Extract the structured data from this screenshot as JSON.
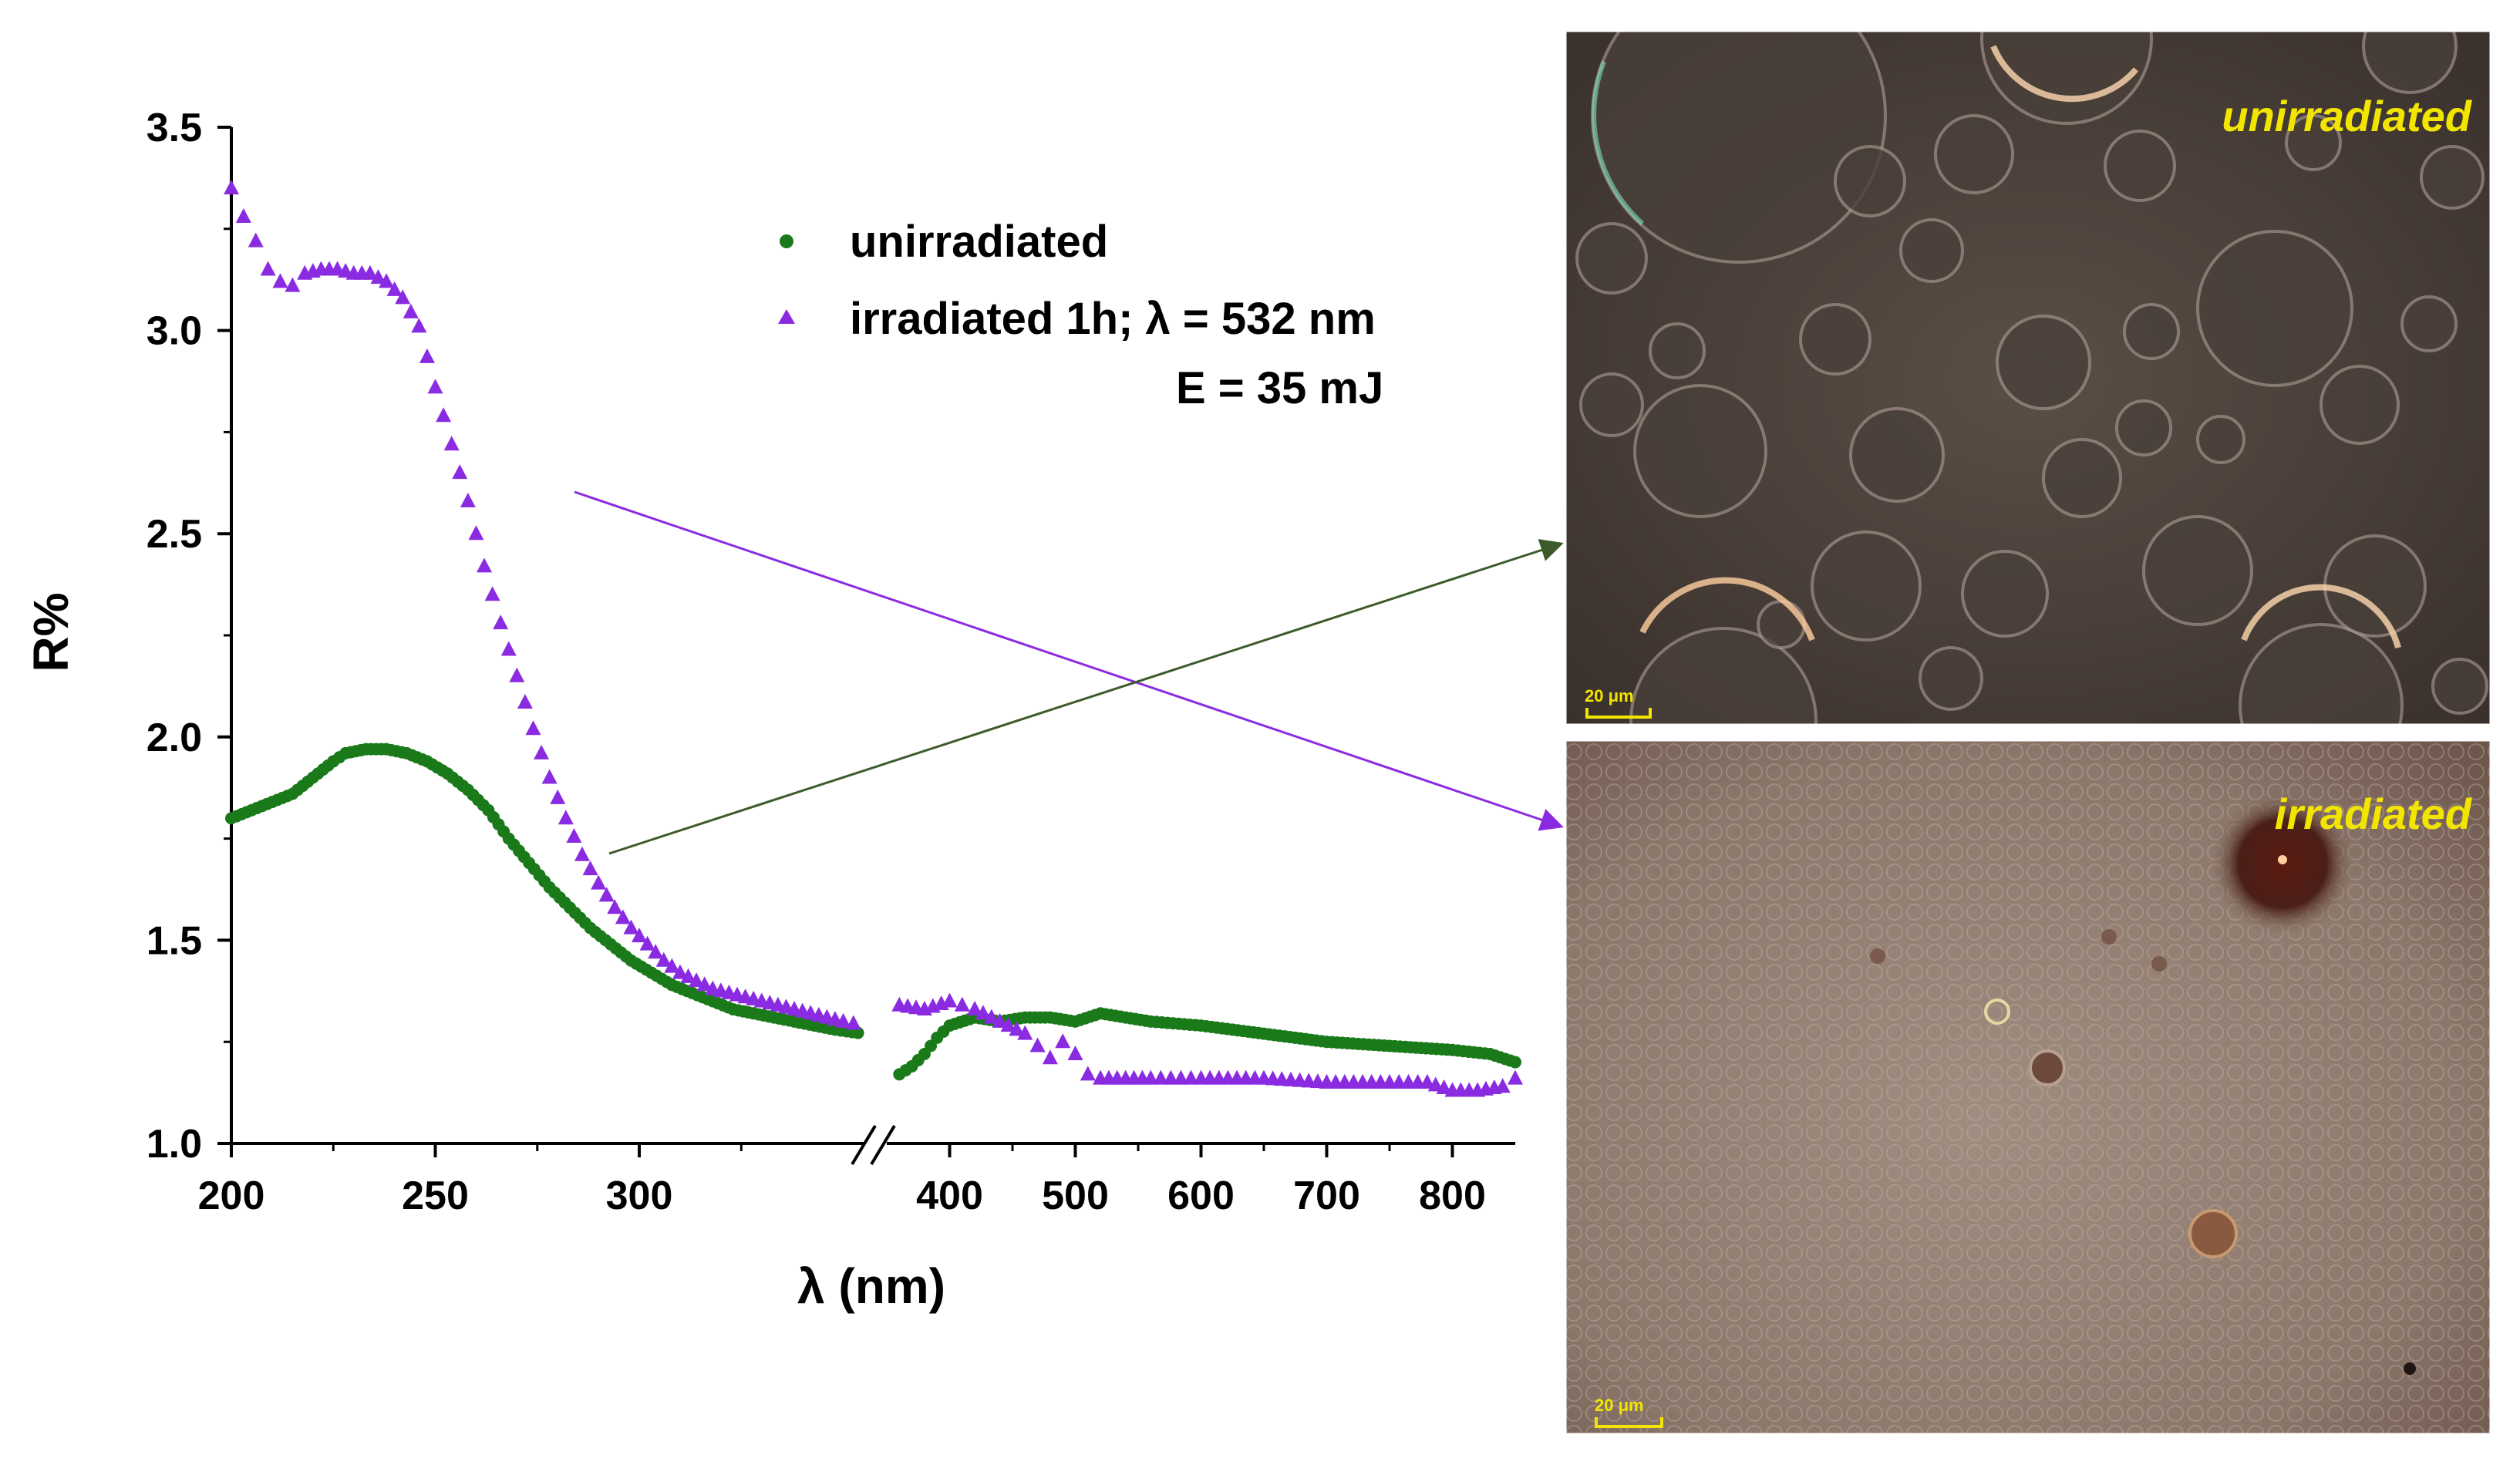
{
  "chart_data": {
    "type": "scatter",
    "xlabel": "λ (nm)",
    "ylabel": "R%",
    "ylim": [
      1.0,
      3.5
    ],
    "y_ticks": [
      "1.0",
      "1.5",
      "2.0",
      "2.5",
      "3.0",
      "3.5"
    ],
    "x_axis_broken": true,
    "x_segment_left": {
      "range": [
        200,
        355
      ],
      "ticks": [
        "200",
        "250",
        "300"
      ]
    },
    "x_segment_right": {
      "range": [
        350,
        850
      ],
      "ticks": [
        "400",
        "500",
        "600",
        "700",
        "800"
      ]
    },
    "legend": {
      "placement": "top-center",
      "entries": [
        "unirradiated",
        "irradiated 1h; λ = 532 nm"
      ],
      "note": "E = 35 mJ"
    },
    "series": [
      {
        "name": "unirradiated",
        "color": "#1a7a1a",
        "marker": "circle",
        "x": [
          200,
          205,
          210,
          215,
          220,
          225,
          228,
          233,
          238,
          243,
          248,
          253,
          258,
          263,
          268,
          273,
          278,
          283,
          288,
          293,
          298,
          303,
          308,
          313,
          318,
          323,
          328,
          333,
          338,
          343,
          348,
          355,
          360,
          370,
          380,
          390,
          400,
          420,
          440,
          460,
          480,
          500,
          520,
          540,
          560,
          600,
          650,
          700,
          750,
          800,
          830,
          850
        ],
        "y": [
          1.8,
          1.82,
          1.84,
          1.86,
          1.9,
          1.94,
          1.96,
          1.97,
          1.97,
          1.96,
          1.94,
          1.91,
          1.87,
          1.82,
          1.75,
          1.69,
          1.63,
          1.58,
          1.53,
          1.49,
          1.45,
          1.42,
          1.39,
          1.37,
          1.35,
          1.33,
          1.32,
          1.31,
          1.3,
          1.29,
          1.28,
          1.27,
          1.17,
          1.19,
          1.22,
          1.26,
          1.29,
          1.31,
          1.3,
          1.31,
          1.31,
          1.3,
          1.32,
          1.31,
          1.3,
          1.29,
          1.27,
          1.25,
          1.24,
          1.23,
          1.22,
          1.2
        ]
      },
      {
        "name": "irradiated 1h; λ = 532 nm",
        "color": "#8a2be2",
        "marker": "triangle",
        "x": [
          200,
          203,
          206,
          209,
          212,
          215,
          218,
          222,
          226,
          230,
          234,
          238,
          242,
          246,
          250,
          254,
          258,
          262,
          266,
          270,
          274,
          278,
          282,
          286,
          290,
          294,
          298,
          302,
          306,
          310,
          314,
          318,
          322,
          326,
          330,
          334,
          338,
          342,
          346,
          350,
          355,
          360,
          380,
          400,
          410,
          420,
          440,
          460,
          470,
          480,
          490,
          500,
          510,
          520,
          540,
          560,
          600,
          650,
          700,
          750,
          780,
          800,
          820,
          840,
          850
        ],
        "y": [
          3.35,
          3.28,
          3.22,
          3.15,
          3.12,
          3.11,
          3.14,
          3.15,
          3.15,
          3.14,
          3.14,
          3.12,
          3.08,
          3.01,
          2.86,
          2.72,
          2.58,
          2.42,
          2.28,
          2.15,
          2.02,
          1.9,
          1.8,
          1.71,
          1.64,
          1.58,
          1.53,
          1.49,
          1.45,
          1.42,
          1.4,
          1.38,
          1.37,
          1.36,
          1.35,
          1.34,
          1.33,
          1.32,
          1.31,
          1.3,
          1.29,
          1.34,
          1.33,
          1.35,
          1.34,
          1.33,
          1.3,
          1.27,
          1.24,
          1.21,
          1.25,
          1.22,
          1.17,
          1.16,
          1.16,
          1.16,
          1.16,
          1.16,
          1.15,
          1.15,
          1.15,
          1.13,
          1.13,
          1.14,
          1.16
        ]
      }
    ]
  },
  "micrographs": {
    "top": {
      "label": "unirradiated",
      "scale_bar": "20 μm",
      "label_color": "#f2e600"
    },
    "bottom": {
      "label": "irradiated",
      "scale_bar": "20 μm",
      "label_color": "#f2e600"
    }
  }
}
